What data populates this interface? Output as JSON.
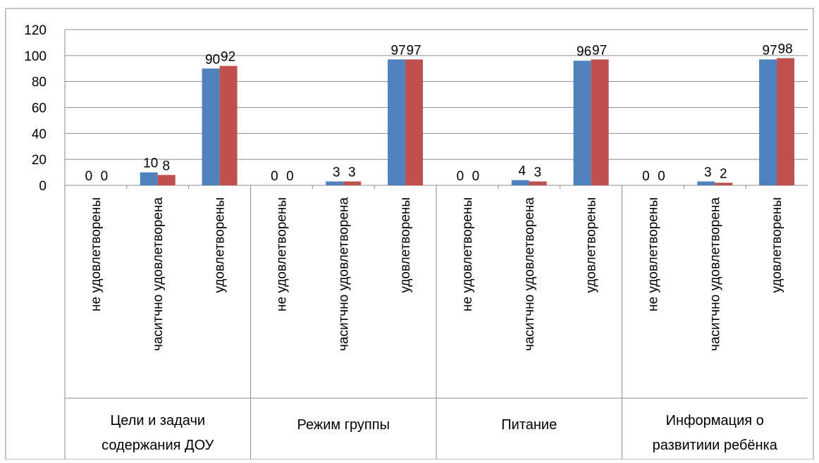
{
  "chart_data": {
    "type": "bar",
    "ylim": [
      0,
      120
    ],
    "yticks": [
      0,
      20,
      40,
      60,
      80,
      100,
      120
    ],
    "grid": true,
    "legend": "none",
    "groups": [
      {
        "label_lines": [
          "Цели и задачи",
          "содержания ДОУ"
        ],
        "categories": [
          "не удовлетворены",
          "часитчно удовлетворена",
          "удовлетворены"
        ]
      },
      {
        "label_lines": [
          "Режим группы"
        ],
        "categories": [
          "не удовлетворены",
          "часитчно удовлетворена",
          "удовлетворены"
        ]
      },
      {
        "label_lines": [
          "Питание"
        ],
        "categories": [
          "не удовлетворены",
          "часитчно удовлетворена",
          "удовлетворены"
        ]
      },
      {
        "label_lines": [
          "Информация о",
          "развитиии ребёнка"
        ],
        "categories": [
          "не удовлетворены",
          "часитчно удовлетворена",
          "удовлетворены"
        ]
      }
    ],
    "series": [
      {
        "color": "#4f81bd",
        "values": [
          0,
          10,
          90,
          0,
          3,
          97,
          0,
          4,
          96,
          0,
          3,
          97
        ]
      },
      {
        "color": "#c0504d",
        "values": [
          0,
          8,
          92,
          0,
          3,
          97,
          0,
          3,
          97,
          0,
          2,
          98
        ]
      }
    ]
  }
}
